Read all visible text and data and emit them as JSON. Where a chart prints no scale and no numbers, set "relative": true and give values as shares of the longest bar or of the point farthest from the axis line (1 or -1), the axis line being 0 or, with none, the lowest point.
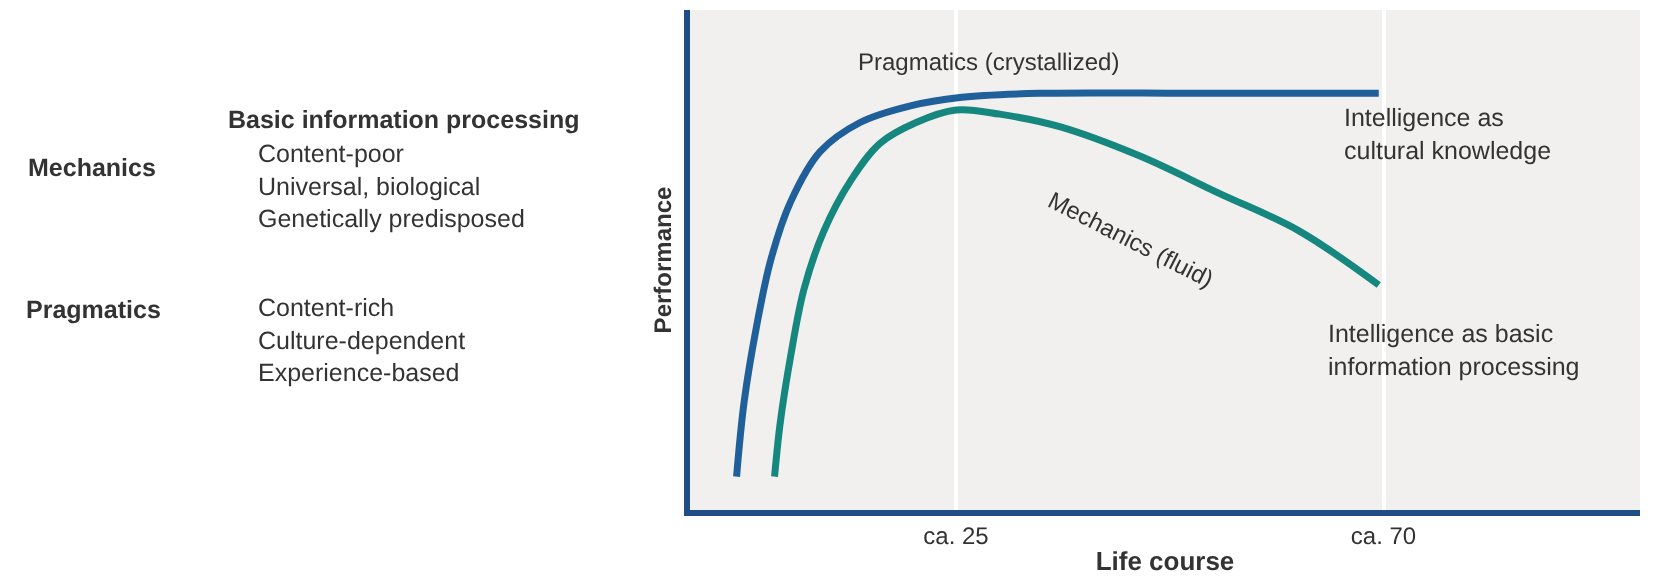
{
  "chart_data": {
    "type": "line",
    "relative": true,
    "xlabel": "Life course",
    "ylabel": "Performance",
    "xlim": [
      -3,
      97
    ],
    "xticks": [
      {
        "value": 25,
        "label": "ca. 25"
      },
      {
        "value": 70,
        "label": "ca. 70"
      }
    ],
    "tick_labels": "x",
    "grid": "x",
    "legend": false,
    "marker": "none",
    "line_style": "solid",
    "series": [
      {
        "name": "Pragmatics (crystallized)",
        "color": "#1f5f9a",
        "x": [
          1.9,
          2.7,
          4.0,
          5.5,
          7.6,
          10.7,
          14.9,
          20.2,
          25.4,
          33.8,
          50.6,
          69.5
        ],
        "values": [
          0.08,
          0.26,
          0.44,
          0.6,
          0.74,
          0.86,
          0.93,
          0.97,
          0.99,
          1,
          1,
          1
        ]
      },
      {
        "name": "Mechanics (fluid)",
        "color": "#16877e",
        "x": [
          5.9,
          6.5,
          7.6,
          9.0,
          11.1,
          13.9,
          17.0,
          20.8,
          25.0,
          29.6,
          35.9,
          44.3,
          52.7,
          61.1,
          69.5
        ],
        "values": [
          0.08,
          0.21,
          0.37,
          0.53,
          0.67,
          0.79,
          0.88,
          0.93,
          0.96,
          0.95,
          0.92,
          0.85,
          0.76,
          0.67,
          0.54
        ]
      }
    ],
    "annotations": [
      "Basic information processing",
      "Content-poor\nUniversal, biological\nGenetically predisposed",
      "Content-rich\nCulture-dependent\nExperience-based",
      "Mechanics",
      "Pragmatics",
      "Intelligence as\ncultural knowledge",
      "Intelligence as basic\ninformation processing"
    ]
  }
}
